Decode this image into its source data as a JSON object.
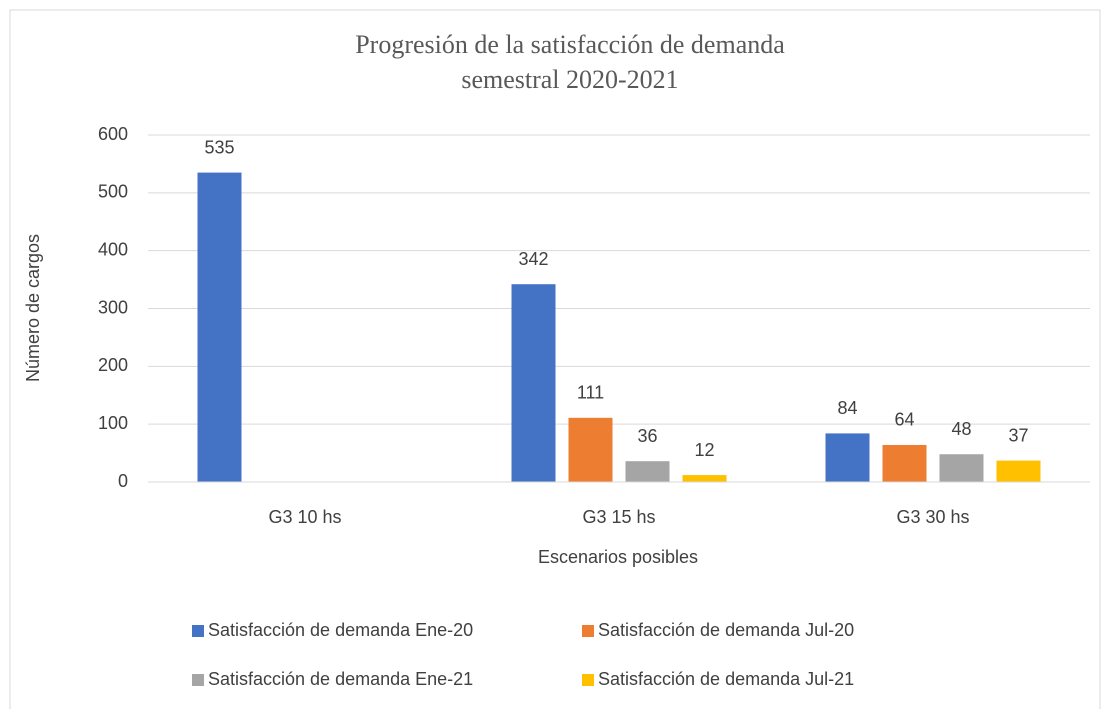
{
  "chart_data": {
    "type": "bar",
    "title": [
      "Progresión de la satisfacción de demanda",
      "semestral 2020-2021"
    ],
    "xlabel": "Escenarios posibles",
    "ylabel": "Número de cargos",
    "categories": [
      "G3 10 hs",
      "G3 15 hs",
      "G3 30 hs"
    ],
    "series": [
      {
        "name": "Satisfacción de demanda Ene-20",
        "color": "#4472c4",
        "values": [
          535,
          342,
          84
        ]
      },
      {
        "name": "Satisfacción de demanda Jul-20",
        "color": "#ed7d31",
        "values": [
          null,
          111,
          64
        ]
      },
      {
        "name": "Satisfacción de demanda Ene-21",
        "color": "#a5a5a5",
        "values": [
          null,
          36,
          48
        ]
      },
      {
        "name": "Satisfacción de demanda Jul-21",
        "color": "#ffc000",
        "values": [
          null,
          12,
          37
        ]
      }
    ],
    "ylim": [
      0,
      600
    ],
    "yticks": [
      0,
      100,
      200,
      300,
      400,
      500,
      600
    ],
    "grid": true,
    "legend": "bottom"
  }
}
